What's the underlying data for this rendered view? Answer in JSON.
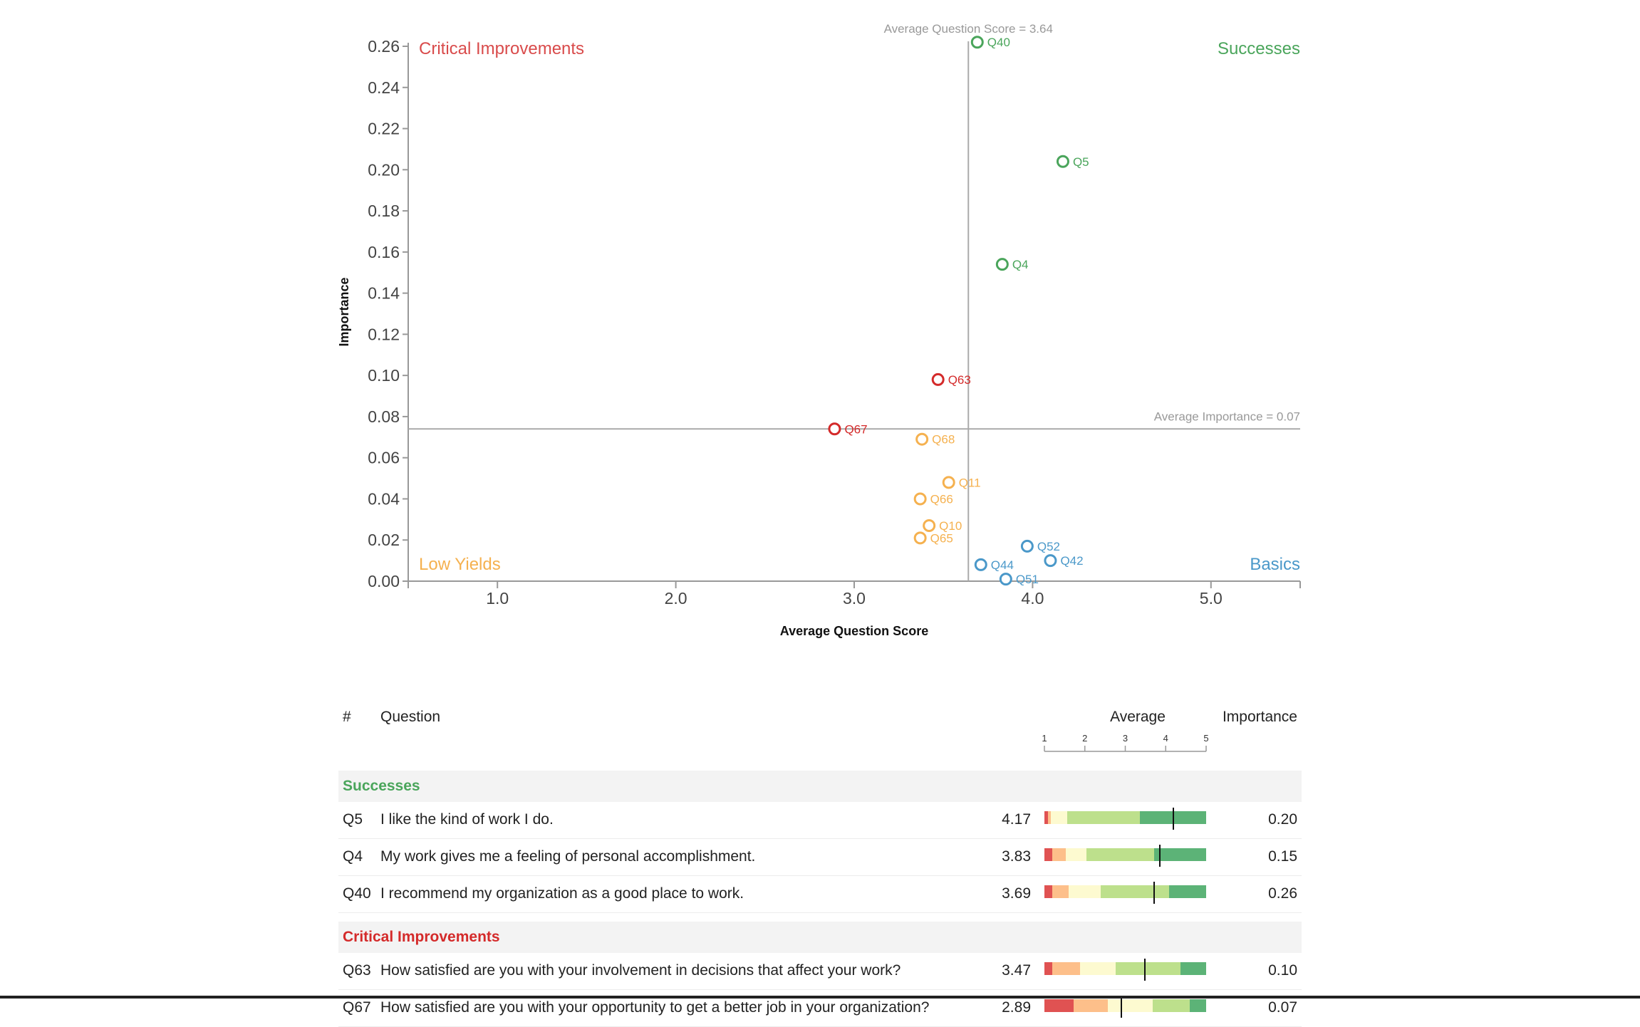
{
  "chart_data": {
    "type": "scatter",
    "xlabel": "Average Question Score",
    "ylabel": "Importance",
    "xlim": [
      0.5,
      5.5
    ],
    "ylim": [
      0.0,
      0.26
    ],
    "x_ticks": [
      1.0,
      2.0,
      3.0,
      4.0,
      5.0
    ],
    "x_tick_labels": [
      "1.0",
      "2.0",
      "3.0",
      "4.0",
      "5.0"
    ],
    "y_ticks": [
      0.0,
      0.02,
      0.04,
      0.06,
      0.08,
      0.1,
      0.12,
      0.14,
      0.16,
      0.18,
      0.2,
      0.22,
      0.24,
      0.26
    ],
    "y_tick_labels": [
      "0.00",
      "0.02",
      "0.04",
      "0.06",
      "0.08",
      "0.10",
      "0.12",
      "0.14",
      "0.16",
      "0.18",
      "0.20",
      "0.22",
      "0.24",
      "0.26"
    ],
    "avg_score": 3.64,
    "avg_importance": 0.074,
    "avg_score_label": "Average Question Score = 3.64",
    "avg_importance_label": "Average Importance = 0.07",
    "grid": false,
    "quadrant_labels": {
      "top_left": "Critical Improvements",
      "top_right": "Successes",
      "bottom_left": "Low Yields",
      "bottom_right": "Basics"
    },
    "colors": {
      "successes": "#4aa55b",
      "critical": "#d42a2a",
      "low_yields": "#f5b14f",
      "basics": "#4a98c9",
      "axis": "#666666",
      "reference_line": "#aaaaaa"
    },
    "points": [
      {
        "label": "Q40",
        "x": 3.69,
        "y": 0.262,
        "group": "successes"
      },
      {
        "label": "Q5",
        "x": 4.17,
        "y": 0.204,
        "group": "successes"
      },
      {
        "label": "Q4",
        "x": 3.83,
        "y": 0.154,
        "group": "successes"
      },
      {
        "label": "Q63",
        "x": 3.47,
        "y": 0.098,
        "group": "critical"
      },
      {
        "label": "Q67",
        "x": 2.89,
        "y": 0.074,
        "group": "critical"
      },
      {
        "label": "Q68",
        "x": 3.38,
        "y": 0.069,
        "group": "low_yields"
      },
      {
        "label": "Q11",
        "x": 3.53,
        "y": 0.048,
        "group": "low_yields"
      },
      {
        "label": "Q66",
        "x": 3.37,
        "y": 0.04,
        "group": "low_yields"
      },
      {
        "label": "Q10",
        "x": 3.42,
        "y": 0.027,
        "group": "low_yields"
      },
      {
        "label": "Q65",
        "x": 3.37,
        "y": 0.021,
        "group": "low_yields"
      },
      {
        "label": "Q52",
        "x": 3.97,
        "y": 0.017,
        "group": "basics"
      },
      {
        "label": "Q42",
        "x": 4.1,
        "y": 0.01,
        "group": "basics"
      },
      {
        "label": "Q44",
        "x": 3.71,
        "y": 0.008,
        "group": "basics"
      },
      {
        "label": "Q51",
        "x": 3.85,
        "y": 0.001,
        "group": "basics"
      }
    ]
  },
  "table": {
    "headers": {
      "num": "#",
      "question": "Question",
      "average": "Average",
      "importance": "Importance"
    },
    "scale_ticks": [
      "1",
      "2",
      "3",
      "4",
      "5"
    ],
    "bar_colors": [
      "#e05252",
      "#fdbf8a",
      "#fdfad0",
      "#bde08c",
      "#5cb377"
    ],
    "sections": [
      {
        "title": "Successes",
        "color": "#4aa55b",
        "rows": [
          {
            "id": "Q5",
            "question": "I like the kind of work I do.",
            "average": "4.17",
            "avg_value": 4.17,
            "importance": "0.20",
            "distribution": [
              0.02,
              0.02,
              0.1,
              0.45,
              0.41
            ]
          },
          {
            "id": "Q4",
            "question": "My work gives me a feeling of personal accomplishment.",
            "average": "3.83",
            "avg_value": 3.83,
            "importance": "0.15",
            "distribution": [
              0.05,
              0.08,
              0.13,
              0.42,
              0.32
            ]
          },
          {
            "id": "Q40",
            "question": "I recommend my organization as a good place to work.",
            "average": "3.69",
            "avg_value": 3.69,
            "importance": "0.26",
            "distribution": [
              0.05,
              0.1,
              0.2,
              0.42,
              0.23
            ]
          }
        ]
      },
      {
        "title": "Critical Improvements",
        "color": "#d42a2a",
        "rows": [
          {
            "id": "Q63",
            "question": "How satisfied are you with your involvement in decisions that affect your work?",
            "average": "3.47",
            "avg_value": 3.47,
            "importance": "0.10",
            "distribution": [
              0.05,
              0.17,
              0.22,
              0.4,
              0.16
            ]
          },
          {
            "id": "Q67",
            "question": "How satisfied are you with your opportunity to get a better job in your organization?",
            "average": "2.89",
            "avg_value": 2.89,
            "importance": "0.07",
            "distribution": [
              0.18,
              0.21,
              0.28,
              0.23,
              0.1
            ]
          }
        ]
      }
    ]
  }
}
